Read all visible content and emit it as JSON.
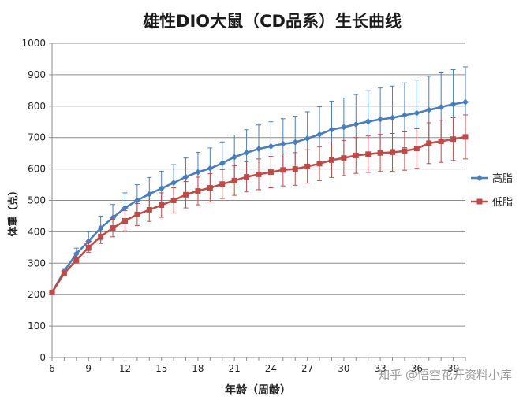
{
  "watermark": "知乎 @悟空花开资料小库",
  "chart_data": {
    "type": "line",
    "title": "雄性DIO大鼠（CD品系）生长曲线",
    "xlabel": "年龄（周龄）",
    "ylabel": "体重（克）",
    "xlim": [
      6,
      40
    ],
    "ylim": [
      0,
      1000
    ],
    "x_ticks": [
      6,
      9,
      12,
      15,
      18,
      21,
      24,
      27,
      30,
      33,
      36,
      39
    ],
    "y_ticks": [
      0,
      100,
      200,
      300,
      400,
      500,
      600,
      700,
      800,
      900,
      1000
    ],
    "grid": "horizontal",
    "legend_position": "right",
    "x": [
      6,
      7,
      8,
      9,
      10,
      11,
      12,
      13,
      14,
      15,
      16,
      17,
      18,
      19,
      20,
      21,
      22,
      23,
      24,
      25,
      26,
      27,
      28,
      29,
      30,
      31,
      32,
      33,
      34,
      35,
      36,
      37,
      38,
      39,
      40
    ],
    "series": [
      {
        "name": "高脂",
        "color": "#4a7ebb",
        "marker": "diamond",
        "values": [
          207,
          275,
          330,
          370,
          412,
          445,
          476,
          500,
          520,
          538,
          556,
          575,
          590,
          602,
          618,
          638,
          652,
          664,
          672,
          680,
          685,
          697,
          710,
          725,
          733,
          742,
          751,
          758,
          763,
          771,
          778,
          788,
          797,
          806,
          813
        ],
        "errors": [
          5,
          8,
          18,
          30,
          38,
          42,
          48,
          50,
          53,
          55,
          58,
          60,
          63,
          65,
          68,
          70,
          73,
          76,
          78,
          80,
          83,
          85,
          88,
          91,
          93,
          95,
          98,
          100,
          101,
          103,
          105,
          107,
          109,
          110,
          112
        ]
      },
      {
        "name": "低脂",
        "color": "#be4b48",
        "marker": "square",
        "values": [
          207,
          268,
          310,
          350,
          385,
          412,
          435,
          455,
          470,
          485,
          500,
          518,
          530,
          540,
          552,
          563,
          575,
          583,
          590,
          597,
          600,
          608,
          617,
          628,
          635,
          643,
          647,
          651,
          653,
          657,
          665,
          682,
          688,
          695,
          702
        ],
        "errors": [
          4,
          7,
          10,
          15,
          22,
          28,
          32,
          35,
          37,
          39,
          40,
          42,
          44,
          45,
          46,
          47,
          48,
          49,
          50,
          51,
          52,
          53,
          54,
          55,
          56,
          57,
          58,
          59,
          60,
          61,
          63,
          65,
          67,
          68,
          70
        ]
      }
    ]
  }
}
